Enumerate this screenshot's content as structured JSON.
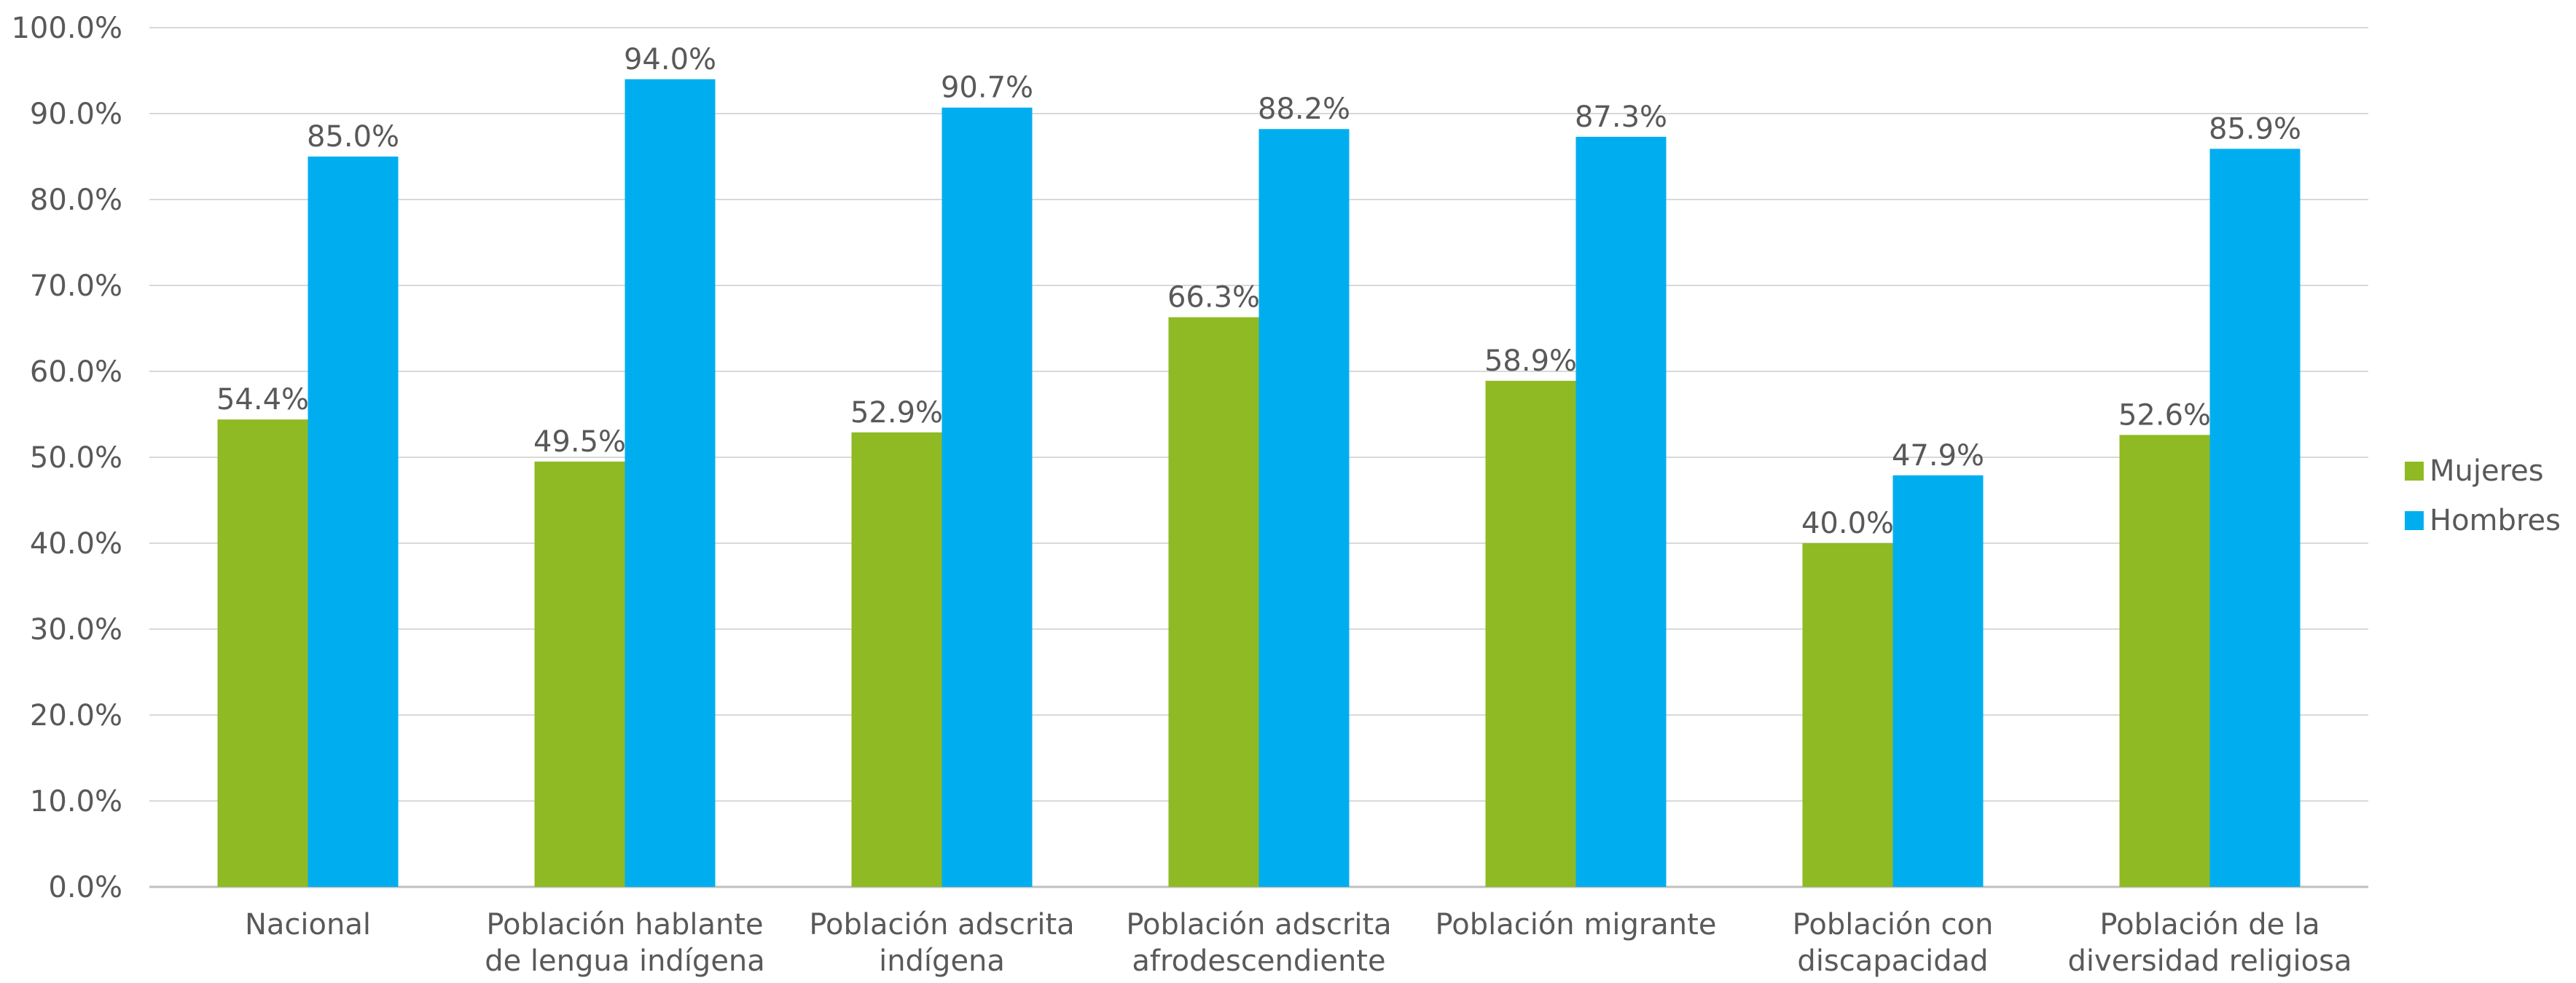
{
  "chart_data": {
    "type": "bar",
    "title": "",
    "xlabel": "",
    "ylabel": "",
    "ylim": [
      0,
      100
    ],
    "y_ticks": [
      "0.0%",
      "10.0%",
      "20.0%",
      "30.0%",
      "40.0%",
      "50.0%",
      "60.0%",
      "70.0%",
      "80.0%",
      "90.0%",
      "100.0%"
    ],
    "grid": true,
    "legend_position": "right",
    "categories": [
      [
        "Nacional"
      ],
      [
        "Población hablante",
        "de lengua indígena"
      ],
      [
        "Población adscrita",
        "indígena"
      ],
      [
        "Población adscrita",
        "afrodescendiente"
      ],
      [
        "Población migrante"
      ],
      [
        "Población con",
        "discapacidad"
      ],
      [
        "Población de la",
        "diversidad religiosa"
      ]
    ],
    "series": [
      {
        "name": "Mujeres",
        "color": "#8FBA24",
        "values": [
          54.4,
          49.5,
          52.9,
          66.3,
          58.9,
          40.0,
          52.6
        ],
        "labels": [
          "54.4%",
          "49.5%",
          "52.9%",
          "66.3%",
          "58.9%",
          "40.0%",
          "52.6%"
        ]
      },
      {
        "name": "Hombres",
        "color": "#00AEEF",
        "values": [
          85.0,
          94.0,
          90.7,
          88.2,
          87.3,
          47.9,
          85.9
        ],
        "labels": [
          "85.0%",
          "94.0%",
          "90.7%",
          "88.2%",
          "87.3%",
          "47.9%",
          "85.9%"
        ]
      }
    ]
  }
}
